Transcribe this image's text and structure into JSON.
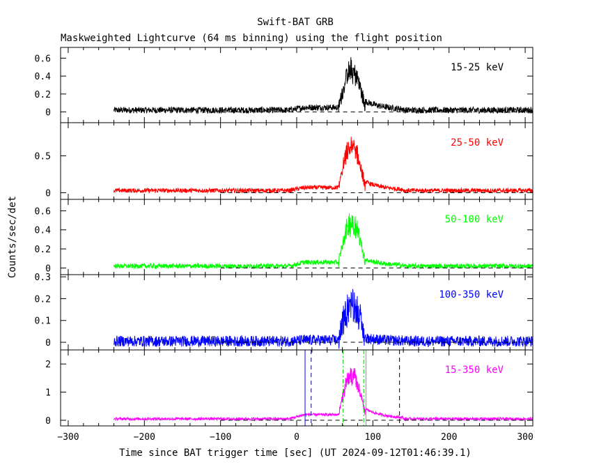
{
  "title": "Swift-BAT GRB",
  "subtitle": "Maskweighted Lightcurve (64 ms binning) using the flight position",
  "chart_data": {
    "type": "line",
    "xlabel": "Time since BAT trigger time [sec] (UT 2024-09-12T01:46:39.1)",
    "ylabel": "Counts/sec/det",
    "xlim": [
      -310,
      310
    ],
    "x_ticks": [
      -300,
      -200,
      -100,
      0,
      100,
      200,
      300
    ],
    "data_start": -240,
    "panels": [
      {
        "band": "15-25 keV",
        "color": "#000000",
        "ylim": [
          -0.12,
          0.72
        ],
        "y_ticks": [
          0,
          0.2,
          0.4,
          0.6
        ],
        "y_tick_labels": [
          "0",
          "0.2",
          "0.4",
          "0.6"
        ],
        "baseline": 0.02,
        "noise": 0.035,
        "pre_level": 0.05,
        "peak": 0.55,
        "decay_level": 0.1
      },
      {
        "band": "25-50 keV",
        "color": "#ff0000",
        "ylim": [
          -0.09,
          0.95
        ],
        "y_ticks": [
          0,
          0.5
        ],
        "y_tick_labels": [
          "0",
          "0.5"
        ],
        "baseline": 0.03,
        "noise": 0.03,
        "pre_level": 0.07,
        "peak": 0.75,
        "decay_level": 0.12
      },
      {
        "band": "50-100 keV",
        "color": "#00ff00",
        "ylim": [
          -0.07,
          0.72
        ],
        "y_ticks": [
          0,
          0.2,
          0.4,
          0.6
        ],
        "y_tick_labels": [
          "0",
          "0.2",
          "0.4",
          "0.6"
        ],
        "baseline": 0.02,
        "noise": 0.025,
        "pre_level": 0.06,
        "peak": 0.58,
        "decay_level": 0.07
      },
      {
        "band": "100-350 keV",
        "color": "#0000ff",
        "ylim": [
          -0.035,
          0.31
        ],
        "y_ticks": [
          0,
          0.1,
          0.2,
          0.3
        ],
        "y_tick_labels": [
          "0",
          "0.1",
          "0.2",
          "0.3"
        ],
        "baseline": 0.005,
        "noise": 0.025,
        "pre_level": 0.01,
        "peak": 0.22,
        "decay_level": 0.015
      },
      {
        "band": "15-350 keV",
        "color": "#ff00ff",
        "ylim": [
          -0.2,
          2.5
        ],
        "y_ticks": [
          0,
          1,
          2
        ],
        "y_tick_labels": [
          "0",
          "1",
          "2"
        ],
        "baseline": 0.05,
        "noise": 0.05,
        "pre_level": 0.2,
        "peak": 1.9,
        "decay_level": 0.35
      }
    ],
    "markers": [
      {
        "x": 11,
        "color": "#0000ff",
        "style": "solid"
      },
      {
        "x": 19,
        "color": "#000080",
        "style": "dashed"
      },
      {
        "x": 61,
        "color": "#00cc00",
        "style": "dashdot"
      },
      {
        "x": 88,
        "color": "#00cc00",
        "style": "dashdot"
      },
      {
        "x": 91,
        "color": "#ff8000",
        "style": "solid"
      },
      {
        "x": 135,
        "color": "#000000",
        "style": "dashed"
      }
    ]
  }
}
